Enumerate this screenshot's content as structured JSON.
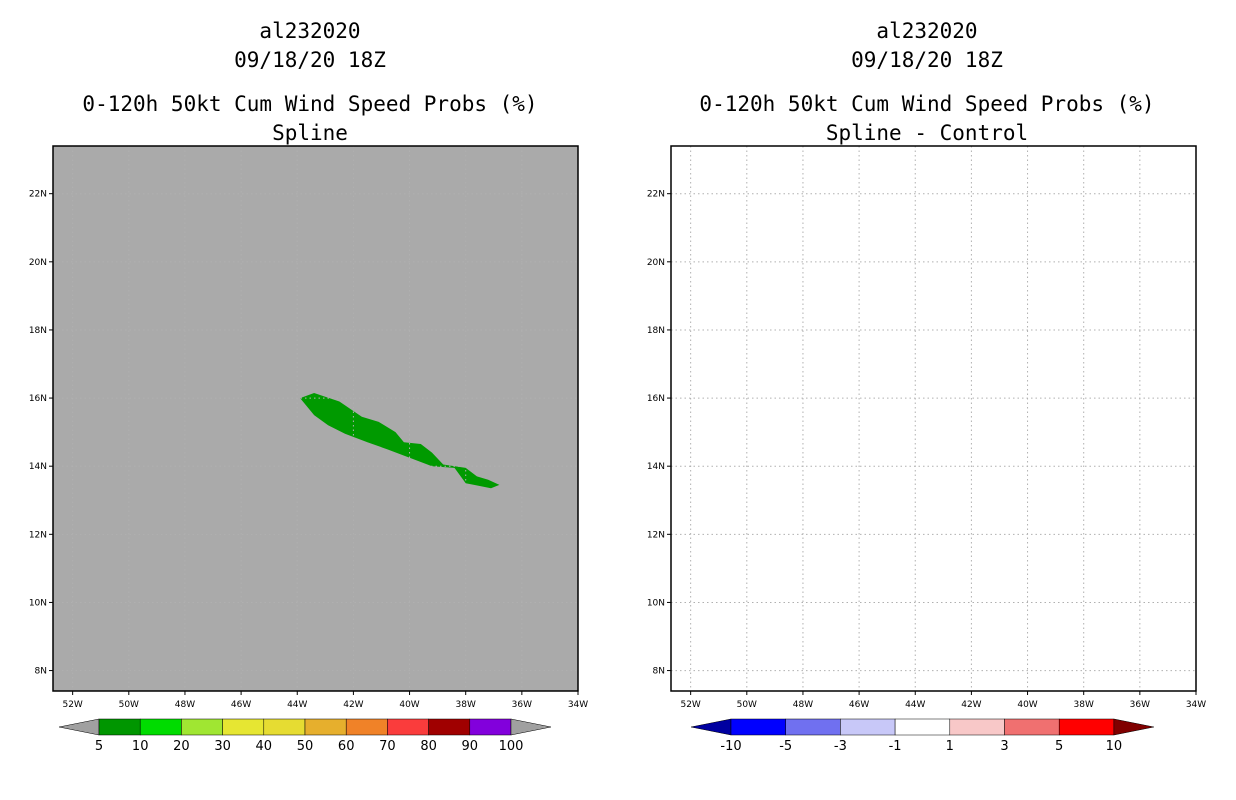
{
  "panels": [
    {
      "storm_id": "al232020",
      "datetime": "09/18/20 18Z",
      "product": "0-120h 50kt Cum Wind Speed Probs (%)",
      "subtitle": "Spline",
      "background": "#aaaaaa",
      "probability_area": {
        "label": "5-10% probability swath",
        "color": "#009a00",
        "outline_lonlat": [
          [
            -43.9,
            16.0
          ],
          [
            -43.4,
            16.15
          ],
          [
            -42.5,
            15.9
          ],
          [
            -41.7,
            15.45
          ],
          [
            -41.1,
            15.3
          ],
          [
            -40.5,
            15.0
          ],
          [
            -40.2,
            14.7
          ],
          [
            -39.6,
            14.65
          ],
          [
            -39.2,
            14.4
          ],
          [
            -38.8,
            14.05
          ],
          [
            -38.0,
            13.95
          ],
          [
            -37.6,
            13.7
          ],
          [
            -37.2,
            13.6
          ],
          [
            -36.8,
            13.45
          ],
          [
            -37.1,
            13.35
          ],
          [
            -37.7,
            13.45
          ],
          [
            -38.0,
            13.5
          ],
          [
            -38.4,
            13.95
          ],
          [
            -39.2,
            14.0
          ],
          [
            -40.0,
            14.25
          ],
          [
            -40.8,
            14.5
          ],
          [
            -41.5,
            14.7
          ],
          [
            -42.3,
            14.95
          ],
          [
            -42.9,
            15.2
          ],
          [
            -43.4,
            15.5
          ]
        ]
      }
    },
    {
      "storm_id": "al232020",
      "datetime": "09/18/20 18Z",
      "product": "0-120h 50kt Cum Wind Speed Probs (%)",
      "subtitle": "Spline - Control",
      "background": "#ffffff"
    }
  ],
  "axes": {
    "lon_range": [
      -52.7,
      -34
    ],
    "lat_range": [
      7.4,
      23.4
    ],
    "x_ticks": [
      {
        "lon": -52,
        "label": "52W"
      },
      {
        "lon": -50,
        "label": "50W"
      },
      {
        "lon": -48,
        "label": "48W"
      },
      {
        "lon": -46,
        "label": "46W"
      },
      {
        "lon": -44,
        "label": "44W"
      },
      {
        "lon": -42,
        "label": "42W"
      },
      {
        "lon": -40,
        "label": "40W"
      },
      {
        "lon": -38,
        "label": "38W"
      },
      {
        "lon": -36,
        "label": "36W"
      },
      {
        "lon": -34,
        "label": "34W"
      }
    ],
    "y_ticks": [
      {
        "lat": 8,
        "label": "8N"
      },
      {
        "lat": 10,
        "label": "10N"
      },
      {
        "lat": 12,
        "label": "12N"
      },
      {
        "lat": 14,
        "label": "14N"
      },
      {
        "lat": 16,
        "label": "16N"
      },
      {
        "lat": 18,
        "label": "18N"
      },
      {
        "lat": 20,
        "label": "20N"
      },
      {
        "lat": 22,
        "label": "22N"
      }
    ]
  },
  "colorbar_prob": {
    "low_arrow_color": "#a0a0a0",
    "high_arrow_color": "#a0a0a0",
    "colors": [
      "#009600",
      "#00dc00",
      "#a0e632",
      "#e6e632",
      "#e6dc32",
      "#e6af2d",
      "#f08228",
      "#fa3c3c",
      "#a00000",
      "#8200dc"
    ],
    "labels": [
      "5",
      "10",
      "20",
      "30",
      "40",
      "50",
      "60",
      "70",
      "80",
      "90",
      "100"
    ]
  },
  "colorbar_diff": {
    "low_arrow_color": "#0000a0",
    "high_arrow_color": "#800000",
    "colors": [
      "#0000ff",
      "#7070f0",
      "#c8c8f8",
      "#ffffff",
      "#f8c8c8",
      "#f07070",
      "#ff0000"
    ],
    "labels": [
      "-10",
      "-5",
      "-3",
      "-1",
      "1",
      "3",
      "5",
      "10"
    ]
  }
}
